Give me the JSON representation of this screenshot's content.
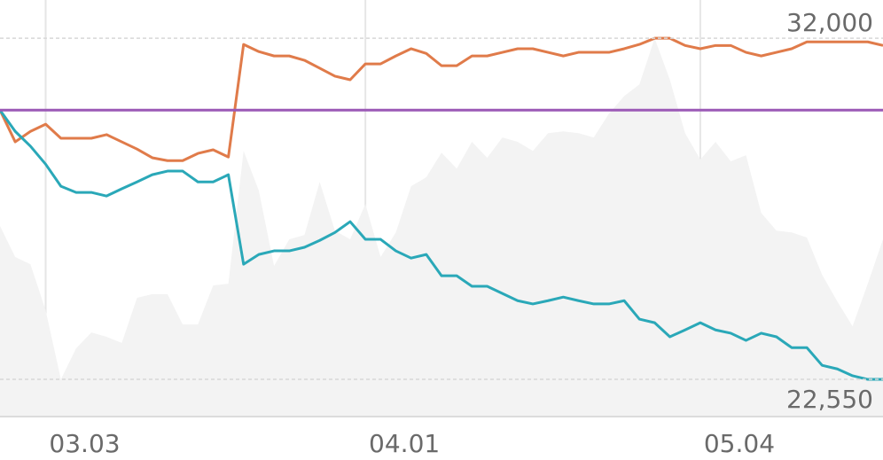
{
  "chart_data": {
    "type": "line",
    "categories": [
      null,
      null,
      null,
      "03.03",
      null,
      null,
      null,
      null,
      null,
      null,
      null,
      null,
      null,
      null,
      null,
      null,
      null,
      null,
      null,
      null,
      null,
      null,
      null,
      null,
      "04.01",
      null,
      null,
      null,
      null,
      null,
      null,
      null,
      null,
      null,
      null,
      null,
      null,
      null,
      null,
      null,
      null,
      null,
      null,
      null,
      null,
      null,
      "05.04",
      null,
      null,
      null,
      null,
      null,
      null,
      null,
      null,
      null,
      null,
      null,
      null
    ],
    "series": [
      {
        "style": "area",
        "color": "#f3f3f3",
        "values": [
          26800,
          25940,
          25740,
          24460,
          22550,
          23410,
          23850,
          23730,
          23560,
          24810,
          24910,
          24910,
          24070,
          24070,
          25150,
          25200,
          28880,
          27780,
          25690,
          26430,
          26550,
          28020,
          26670,
          26430,
          27410,
          25940,
          26620,
          27900,
          28150,
          28830,
          28390,
          29130,
          28690,
          29250,
          29130,
          28880,
          29370,
          29420,
          29370,
          29250,
          29910,
          30400,
          30720,
          32000,
          30850,
          29370,
          28640,
          29130,
          28590,
          28760,
          27160,
          26670,
          26620,
          26480,
          25450,
          24710,
          24020,
          25200,
          26430
        ]
      },
      {
        "style": "line",
        "color": "#e07b4a",
        "values": [
          30010,
          29130,
          29420,
          29620,
          29230,
          29230,
          29230,
          29330,
          29130,
          28930,
          28690,
          28610,
          28610,
          28810,
          28910,
          28710,
          31830,
          31630,
          31510,
          31510,
          31390,
          31170,
          30950,
          30850,
          31290,
          31290,
          31510,
          31710,
          31580,
          31240,
          31240,
          31510,
          31510,
          31610,
          31710,
          31710,
          31610,
          31510,
          31610,
          31610,
          31610,
          31710,
          31830,
          32000,
          32000,
          31800,
          31710,
          31800,
          31800,
          31610,
          31510,
          31610,
          31710,
          31900,
          31900,
          31900,
          31900,
          31900,
          31800
        ]
      },
      {
        "style": "line",
        "color": "#2aa8b8",
        "values": [
          30010,
          29420,
          29010,
          28510,
          27900,
          27730,
          27730,
          27630,
          27830,
          28020,
          28220,
          28320,
          28320,
          28020,
          28020,
          28220,
          25740,
          26010,
          26110,
          26110,
          26210,
          26400,
          26620,
          26920,
          26430,
          26430,
          26110,
          25910,
          26010,
          25420,
          25420,
          25130,
          25130,
          24930,
          24730,
          24640,
          24730,
          24830,
          24730,
          24640,
          24640,
          24730,
          24220,
          24120,
          23730,
          23920,
          24120,
          23920,
          23830,
          23630,
          23830,
          23730,
          23430,
          23430,
          22940,
          22840,
          22650,
          22550,
          22550
        ]
      },
      {
        "style": "line",
        "color": "#9b59b6",
        "values": [
          30010,
          30010,
          30010,
          30010,
          30010,
          30010,
          30010,
          30010,
          30010,
          30010,
          30010,
          30010,
          30010,
          30010,
          30010,
          30010,
          30010,
          30010,
          30010,
          30010,
          30010,
          30010,
          30010,
          30010,
          30010,
          30010,
          30010,
          30010,
          30010,
          30010,
          30010,
          30010,
          30010,
          30010,
          30010,
          30010,
          30010,
          30010,
          30010,
          30010,
          30010,
          30010,
          30010,
          30010,
          30010,
          30010,
          30010,
          30010,
          30010,
          30010,
          30010,
          30010,
          30010,
          30010,
          30010,
          30010,
          30010,
          30010,
          30010
        ]
      }
    ],
    "ylim": [
      21520,
      33060
    ],
    "yticks": [
      {
        "value": 32000,
        "label": "32,000"
      },
      {
        "value": 22550,
        "label": "22,550"
      }
    ],
    "grid": true
  }
}
